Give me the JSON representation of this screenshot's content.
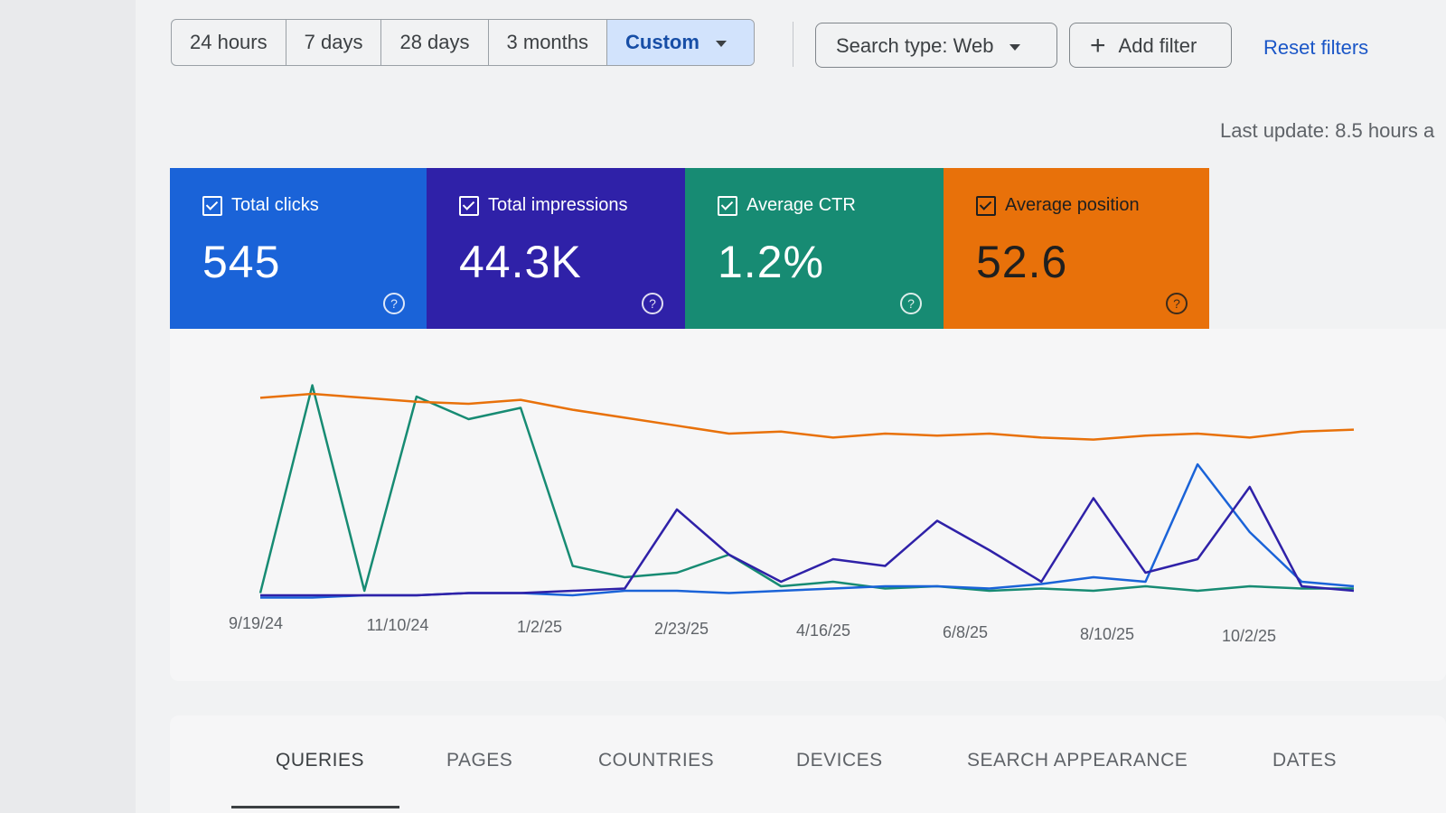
{
  "toolbar": {
    "ranges": [
      "24 hours",
      "7 days",
      "28 days",
      "3 months",
      "Custom"
    ],
    "active_range": "Custom",
    "search_type": "Search type: Web",
    "add_filter": "Add filter",
    "reset_filters": "Reset filters",
    "last_update": "Last update: 8.5 hours a"
  },
  "metrics": [
    {
      "label": "Total clicks",
      "value": "545",
      "color": "#1a63d8"
    },
    {
      "label": "Total impressions",
      "value": "44.3K",
      "color": "#2f21a8"
    },
    {
      "label": "Average CTR",
      "value": "1.2%",
      "color": "#178b73"
    },
    {
      "label": "Average position",
      "value": "52.6",
      "color": "#e8710a"
    }
  ],
  "tabs": [
    "QUERIES",
    "PAGES",
    "COUNTRIES",
    "DEVICES",
    "SEARCH APPEARANCE",
    "DATES"
  ],
  "active_tab": "QUERIES",
  "chart_data": {
    "type": "line",
    "x_ticks": [
      "9/19/24",
      "11/10/24",
      "1/2/25",
      "2/23/25",
      "4/16/25",
      "6/8/25",
      "8/10/25",
      "10/2/25"
    ],
    "grid": false,
    "legend": "none",
    "series": [
      {
        "name": "Average position",
        "color": "#e8710a",
        "values": [
          12,
          10,
          12,
          14,
          15,
          13,
          18,
          22,
          26,
          30,
          29,
          32,
          30,
          31,
          30,
          32,
          33,
          31,
          30,
          32,
          29,
          28
        ]
      },
      {
        "name": "Total impressions",
        "color": "#2f21a8",
        "values": [
          2,
          2,
          2,
          2,
          3,
          3,
          4,
          5,
          40,
          20,
          8,
          18,
          15,
          35,
          22,
          8,
          45,
          12,
          18,
          50,
          6,
          4
        ]
      },
      {
        "name": "Total clicks",
        "color": "#1a63d8",
        "values": [
          1,
          1,
          2,
          2,
          3,
          3,
          2,
          4,
          4,
          3,
          4,
          5,
          6,
          6,
          5,
          7,
          10,
          8,
          60,
          30,
          8,
          6
        ]
      },
      {
        "name": "Average CTR",
        "color": "#178b73",
        "values": [
          3,
          95,
          4,
          90,
          80,
          85,
          15,
          10,
          12,
          20,
          6,
          8,
          5,
          6,
          4,
          5,
          4,
          6,
          4,
          6,
          5,
          5
        ]
      }
    ]
  }
}
